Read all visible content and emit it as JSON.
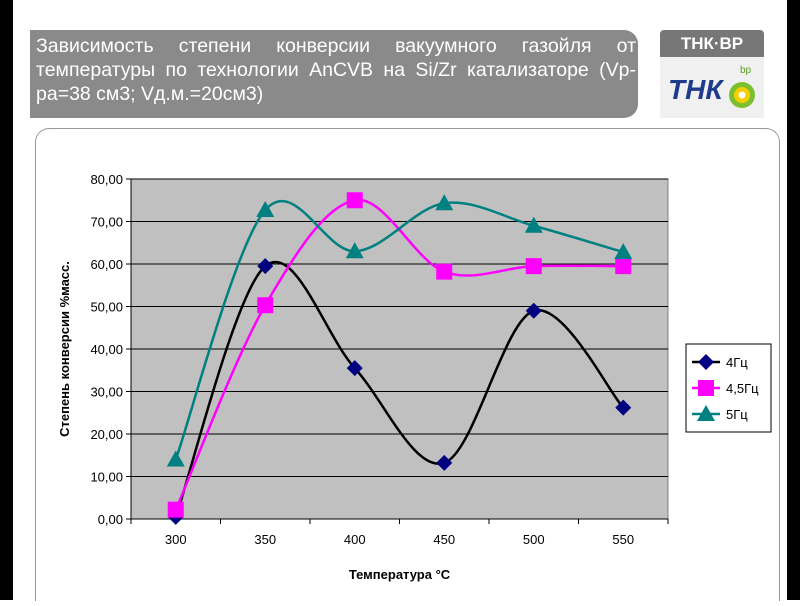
{
  "slide": {
    "title": "Зависимость степени конверсии вакуумного газойля от температуры по технологии AnCVB на Si/Zr катализаторе (Vр-ра=38 см3; Vд.м.=20см3)",
    "logo_text": "ТНК·ВР",
    "logo_bp": "bp"
  },
  "colors": {
    "title_band": "#8a8a8a",
    "plot_area": "#c0c0c0",
    "series_4": "#000080",
    "series_45": "#ff00ff",
    "series_5": "#008080"
  },
  "chart_data": {
    "type": "line",
    "xlabel": "Температура °C",
    "ylabel": "Степень конверсии %масс.",
    "categories": [
      "300",
      "350",
      "400",
      "450",
      "500",
      "550"
    ],
    "ylim": [
      0,
      80
    ],
    "yticks": [
      "0,00",
      "10,00",
      "20,00",
      "30,00",
      "40,00",
      "50,00",
      "60,00",
      "70,00",
      "80,00"
    ],
    "grid": true,
    "legend_position": "right",
    "series": [
      {
        "name": "4Гц",
        "marker": "diamond",
        "values": [
          0.5,
          59.5,
          35.5,
          13.2,
          49,
          26.2
        ]
      },
      {
        "name": "4,5Гц",
        "marker": "square",
        "values": [
          2.2,
          50.3,
          75,
          58.2,
          59.5,
          59.5
        ]
      },
      {
        "name": "5Гц",
        "marker": "triangle",
        "values": [
          14,
          72.7,
          63,
          74.3,
          69,
          62.8
        ]
      }
    ]
  }
}
